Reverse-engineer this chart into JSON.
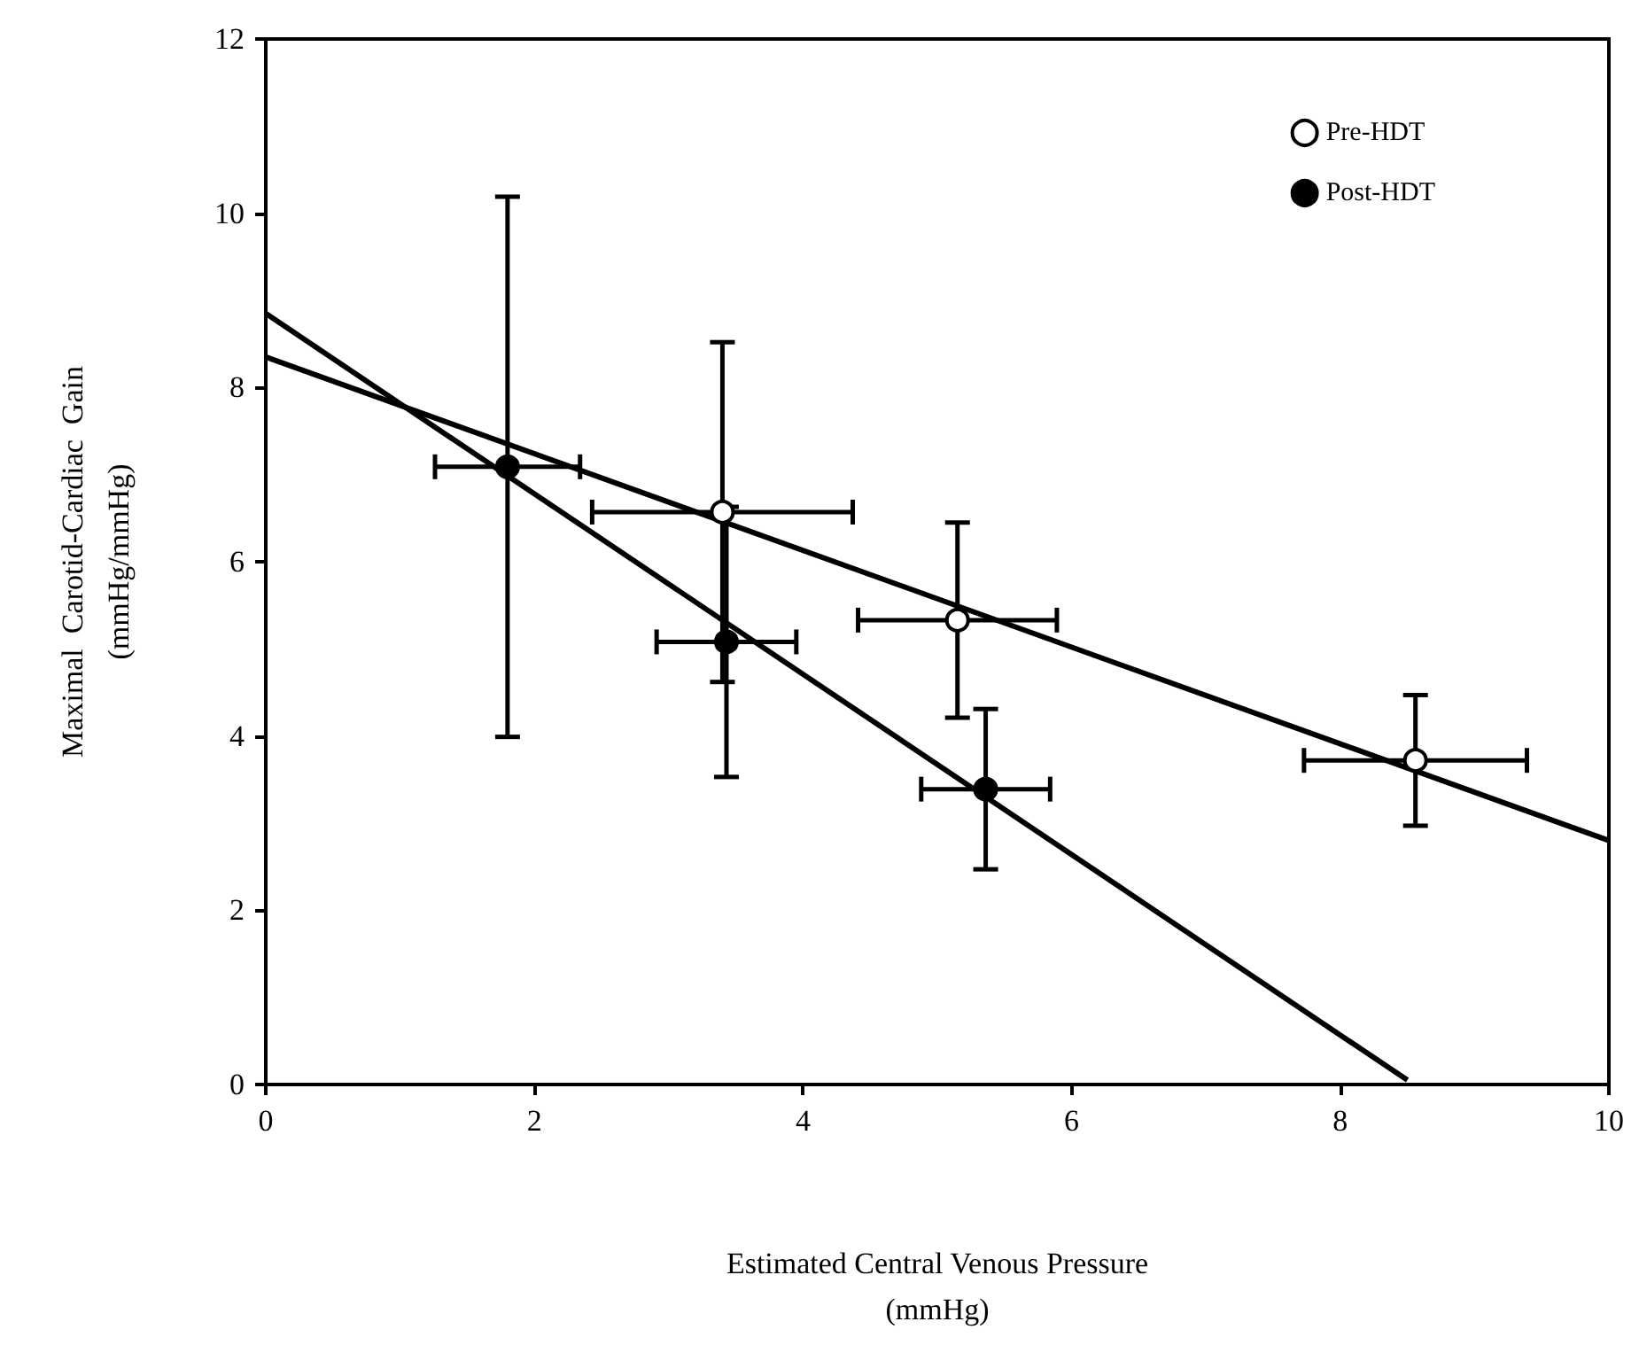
{
  "chart_data": {
    "type": "scatter",
    "xlabel": "Estimated Central Venous Pressure\n(mmHg)",
    "ylabel": "Maximal  Carotid-Cardiac  Gain\n(mmHg/mmHg)",
    "xlim": [
      0,
      10
    ],
    "xticks": [
      0,
      2,
      4,
      6,
      8,
      10
    ],
    "ylim": [
      0,
      12
    ],
    "yticks": [
      0,
      2,
      4,
      6,
      8,
      10,
      12
    ],
    "grid": false,
    "legend": "top right",
    "marker": "circle",
    "series": [
      {
        "name": "Pre-HDT",
        "color": "#ffffff",
        "x": [
          3.4,
          5.15,
          8.56
        ],
        "values": [
          6.57,
          5.33,
          3.72
        ],
        "errors": [
          1.95,
          1.12,
          0.75
        ],
        "xerrors": [
          0.97,
          0.74,
          0.83
        ]
      },
      {
        "name": "Post-HDT",
        "color": "#000000",
        "x": [
          1.8,
          3.43,
          5.36
        ],
        "values": [
          7.09,
          5.08,
          3.39
        ],
        "errors": [
          3.1,
          1.55,
          0.92
        ],
        "xerrors": [
          0.54,
          0.52,
          0.48
        ]
      },
      {
        "type": "line",
        "color": "#000000",
        "marker": "none",
        "x": [
          0,
          10
        ],
        "values": [
          8.35,
          2.8
        ]
      },
      {
        "type": "line",
        "color": "#000000",
        "marker": "none",
        "x": [
          0,
          8.5
        ],
        "values": [
          8.85,
          0.05
        ]
      }
    ]
  }
}
